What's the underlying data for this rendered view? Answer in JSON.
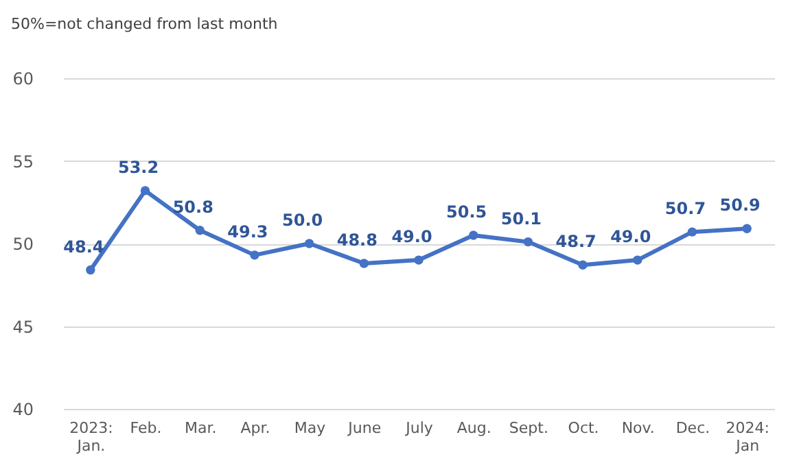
{
  "chart_data": {
    "type": "line",
    "title": "50%=not changed from last month",
    "categories": [
      "2023:\nJan.",
      "Feb.",
      "Mar.",
      "Apr.",
      "May",
      "June",
      "July",
      "Aug.",
      "Sept.",
      "Oct.",
      "Nov.",
      "Dec.",
      "2024:\nJan"
    ],
    "series": [
      {
        "color": "#4472c4",
        "values": [
          48.4,
          53.2,
          50.8,
          49.3,
          50.0,
          48.8,
          49.0,
          50.5,
          50.1,
          48.7,
          49.0,
          50.7,
          50.9
        ],
        "value_labels": [
          "48.4",
          "53.2",
          "50.8",
          "49.3",
          "50.0",
          "48.8",
          "49.0",
          "50.5",
          "50.1",
          "48.7",
          "49.0",
          "50.7",
          "50.9"
        ]
      }
    ],
    "ylim": [
      40,
      60
    ],
    "yticks": [
      40,
      45,
      50,
      55,
      60
    ],
    "grid": "y",
    "marker": "circle",
    "line_style": "solid"
  }
}
